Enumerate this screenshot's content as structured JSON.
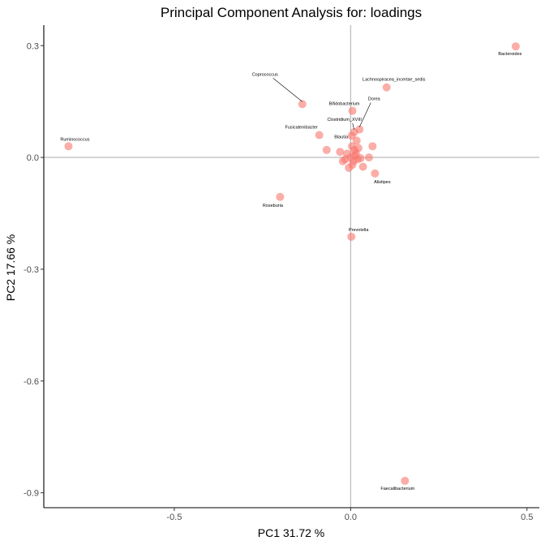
{
  "chart_data": {
    "type": "scatter",
    "title": "Principal Component Analysis for:  loadings",
    "xlabel": "PC1 31.72 %",
    "ylabel": "PC2 17.66 %",
    "xlim": [
      -0.87,
      0.535
    ],
    "ylim": [
      -0.94,
      0.355
    ],
    "x_ticks": [
      -0.5,
      0.0,
      0.5
    ],
    "x_tick_labels": [
      "-0.5",
      "0.0",
      "0.5"
    ],
    "y_ticks": [
      0.3,
      0.0,
      -0.3,
      -0.6,
      -0.9
    ],
    "y_tick_labels": [
      "0.3",
      "0.0",
      "-0.3",
      "-0.6",
      "-0.9"
    ],
    "reference_lines": {
      "x": 0,
      "y": 0
    },
    "grid": false,
    "point_color": "#F8766D",
    "labeled_points": [
      {
        "label": "Bacteroides",
        "x": 0.468,
        "y": 0.298
      },
      {
        "label": "Lachnospiracea_incertae_sedis",
        "x": 0.102,
        "y": 0.188
      },
      {
        "label": "Coprococcus",
        "x": -0.137,
        "y": 0.143
      },
      {
        "label": "Bifidobacterium",
        "x": 0.005,
        "y": 0.125
      },
      {
        "label": "Dorea",
        "x": 0.025,
        "y": 0.075
      },
      {
        "label": "Clostridium_XVIII",
        "x": 0.01,
        "y": 0.068
      },
      {
        "label": "Fusicatenibacter",
        "x": -0.089,
        "y": 0.06
      },
      {
        "label": "Blautia",
        "x": 0.003,
        "y": 0.058
      },
      {
        "label": "Ruminococcus",
        "x": -0.8,
        "y": 0.03
      },
      {
        "label": "Alistipes",
        "x": 0.069,
        "y": -0.043
      },
      {
        "label": "Roseburia",
        "x": -0.2,
        "y": -0.106
      },
      {
        "label": "Prevotella",
        "x": 0.002,
        "y": -0.213
      },
      {
        "label": "Faecalibacterium",
        "x": 0.154,
        "y": -0.868
      }
    ],
    "unlabeled_points": [
      {
        "x": 0.062,
        "y": 0.03
      },
      {
        "x": 0.017,
        "y": 0.045
      },
      {
        "x": -0.068,
        "y": 0.02
      },
      {
        "x": -0.03,
        "y": 0.015
      },
      {
        "x": 0.022,
        "y": 0.025
      },
      {
        "x": 0.052,
        "y": 0.0
      },
      {
        "x": 0.035,
        "y": -0.025
      },
      {
        "x": -0.005,
        "y": -0.028
      },
      {
        "x": 0.005,
        "y": -0.02
      },
      {
        "x": -0.015,
        "y": -0.005
      },
      {
        "x": 0.01,
        "y": 0.02
      },
      {
        "x": 0.0,
        "y": 0.0
      },
      {
        "x": 0.012,
        "y": 0.005
      },
      {
        "x": 0.02,
        "y": -0.005
      },
      {
        "x": -0.01,
        "y": 0.01
      },
      {
        "x": 0.008,
        "y": -0.01
      },
      {
        "x": 0.028,
        "y": -0.002
      },
      {
        "x": -0.022,
        "y": -0.01
      },
      {
        "x": 0.015,
        "y": 0.012
      },
      {
        "x": 0.004,
        "y": 0.03
      }
    ]
  }
}
